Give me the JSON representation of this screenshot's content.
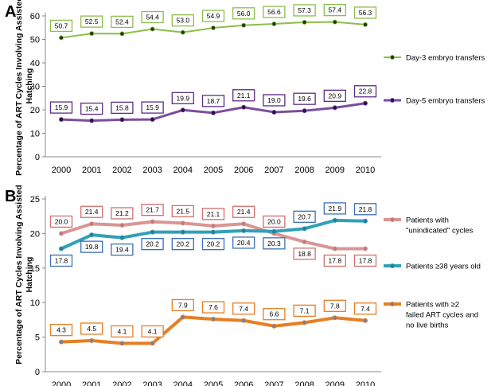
{
  "chart_data": [
    {
      "panel": "A",
      "type": "line",
      "ylabel": "Percentage of ART Cycles Involving Assisted Hatching",
      "xlabel": "",
      "ylim": [
        0,
        60
      ],
      "yticks": [
        0,
        10,
        20,
        30,
        40,
        50,
        60
      ],
      "grid": false,
      "legend_position": "right",
      "x": [
        "2000",
        "2001",
        "2002",
        "2003",
        "2004",
        "2005",
        "2006",
        "2007",
        "2008",
        "2009",
        "2010"
      ],
      "series": [
        {
          "name": "Day-3 embryo transfers",
          "color": "#8DBE4A",
          "label_border": "#8DBE4A",
          "marker_color": "#1E3A0A",
          "line_width": 2,
          "values": [
            50.7,
            52.5,
            52.4,
            54.4,
            53.0,
            54.9,
            56.0,
            56.6,
            57.3,
            57.4,
            56.3
          ],
          "labels": [
            "50.7",
            "52.5",
            "52.4",
            "54.4",
            "53.0",
            "54.9",
            "56.0",
            "56.6",
            "57.3",
            "57.4",
            "56.3"
          ],
          "label_side": "above"
        },
        {
          "name": "Day-5 embryo transfers",
          "color": "#7B4D9E",
          "label_border": "#5B2C86",
          "marker_color": "#2A1040",
          "line_width": 3,
          "values": [
            15.9,
            15.4,
            15.8,
            15.9,
            19.9,
            18.7,
            21.1,
            19.0,
            19.6,
            20.9,
            22.8
          ],
          "labels": [
            "15.9",
            "15.4",
            "15.8",
            "15.9",
            "19.9",
            "18.7",
            "21.1",
            "19.0",
            "19.6",
            "20.9",
            "22.8"
          ],
          "label_side": "above"
        }
      ]
    },
    {
      "panel": "B",
      "type": "line",
      "ylabel": "Percentage of ART Cycles Involving Assisted Hatching",
      "xlabel": "",
      "ylim": [
        0,
        25
      ],
      "yticks": [
        0,
        5,
        10,
        15,
        20,
        25
      ],
      "grid": false,
      "legend_position": "right",
      "x": [
        "2000",
        "2001",
        "2002",
        "2003",
        "2004",
        "2005",
        "2006",
        "2007",
        "2008",
        "2009",
        "2010"
      ],
      "series": [
        {
          "name": "Patients with \"unindicated\" cycles",
          "legend_lines": [
            "Patients with",
            "\"unindicated\" cycles"
          ],
          "color": "#D99694",
          "label_border": "#D16F6C",
          "marker_color": "#C07A78",
          "line_width": 4,
          "values": [
            20.0,
            21.4,
            21.2,
            21.7,
            21.5,
            21.1,
            21.4,
            20.0,
            18.8,
            17.8,
            17.8
          ],
          "labels": [
            "20.0",
            "21.4",
            "21.2",
            "21.7",
            "21.5",
            "21.1",
            "21.4",
            "20.0",
            "18.8",
            "17.8",
            "17.8"
          ],
          "label_side": [
            "above",
            "above",
            "above",
            "above",
            "above",
            "above",
            "above",
            "above",
            "below",
            "below",
            "below"
          ]
        },
        {
          "name": "Patients ≥38 years old",
          "legend_lines": [
            "Patients ≥38 years old"
          ],
          "color": "#31A0B9",
          "label_border": "#3B6FB6",
          "marker_color": "#2C7C91",
          "line_width": 4,
          "values": [
            17.8,
            19.8,
            19.4,
            20.2,
            20.2,
            20.2,
            20.4,
            20.3,
            20.7,
            21.9,
            21.8
          ],
          "labels": [
            "17.8",
            "19.8",
            "19.4",
            "20.2",
            "20.2",
            "20.2",
            "20.4",
            "20.3",
            "20.7",
            "21.9",
            "21.8"
          ],
          "label_side": [
            "below",
            "below",
            "below",
            "below",
            "below",
            "below",
            "below",
            "below",
            "above",
            "above",
            "above"
          ]
        },
        {
          "name": "Patients with ≥2 failed ART cycles and no live births",
          "legend_lines": [
            "Patients with ≥2",
            "failed ART cycles and",
            "no live births"
          ],
          "color": "#E67E22",
          "label_border": "#E67E22",
          "marker_color": "#7A7FA0",
          "line_width": 4,
          "values": [
            4.3,
            4.5,
            4.1,
            4.1,
            7.9,
            7.6,
            7.4,
            6.6,
            7.1,
            7.8,
            7.4
          ],
          "labels": [
            "4.3",
            "4.5",
            "4.1",
            "4.1",
            "7.9",
            "7.6",
            "7.4",
            "6.6",
            "7.1",
            "7.8",
            "7.4"
          ],
          "label_side": "above"
        }
      ]
    }
  ]
}
